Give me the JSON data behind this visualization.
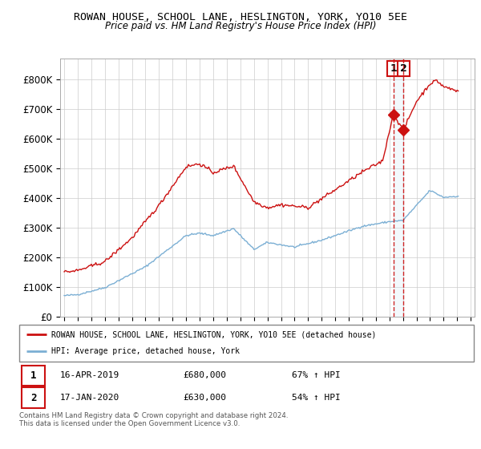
{
  "title": "ROWAN HOUSE, SCHOOL LANE, HESLINGTON, YORK, YO10 5EE",
  "subtitle": "Price paid vs. HM Land Registry's House Price Index (HPI)",
  "ylim": [
    0,
    870000
  ],
  "yticks": [
    0,
    100000,
    200000,
    300000,
    400000,
    500000,
    600000,
    700000,
    800000
  ],
  "ytick_labels": [
    "£0",
    "£100K",
    "£200K",
    "£300K",
    "£400K",
    "£500K",
    "£600K",
    "£700K",
    "£800K"
  ],
  "hpi_color": "#7bafd4",
  "price_color": "#cc1111",
  "vline_color": "#cc1111",
  "shade_color": "#d0e8f5",
  "legend_label_red": "ROWAN HOUSE, SCHOOL LANE, HESLINGTON, YORK, YO10 5EE (detached house)",
  "legend_label_blue": "HPI: Average price, detached house, York",
  "sale1_date": "16-APR-2019",
  "sale1_price": "£680,000",
  "sale1_hpi": "67% ↑ HPI",
  "sale2_date": "17-JAN-2020",
  "sale2_price": "£630,000",
  "sale2_hpi": "54% ↑ HPI",
  "footnote": "Contains HM Land Registry data © Crown copyright and database right 2024.\nThis data is licensed under the Open Government Licence v3.0.",
  "sale1_x": 2019.29,
  "sale1_y": 680000,
  "sale2_x": 2020.05,
  "sale2_y": 630000,
  "xlim_start": 1994.7,
  "xlim_end": 2025.3
}
